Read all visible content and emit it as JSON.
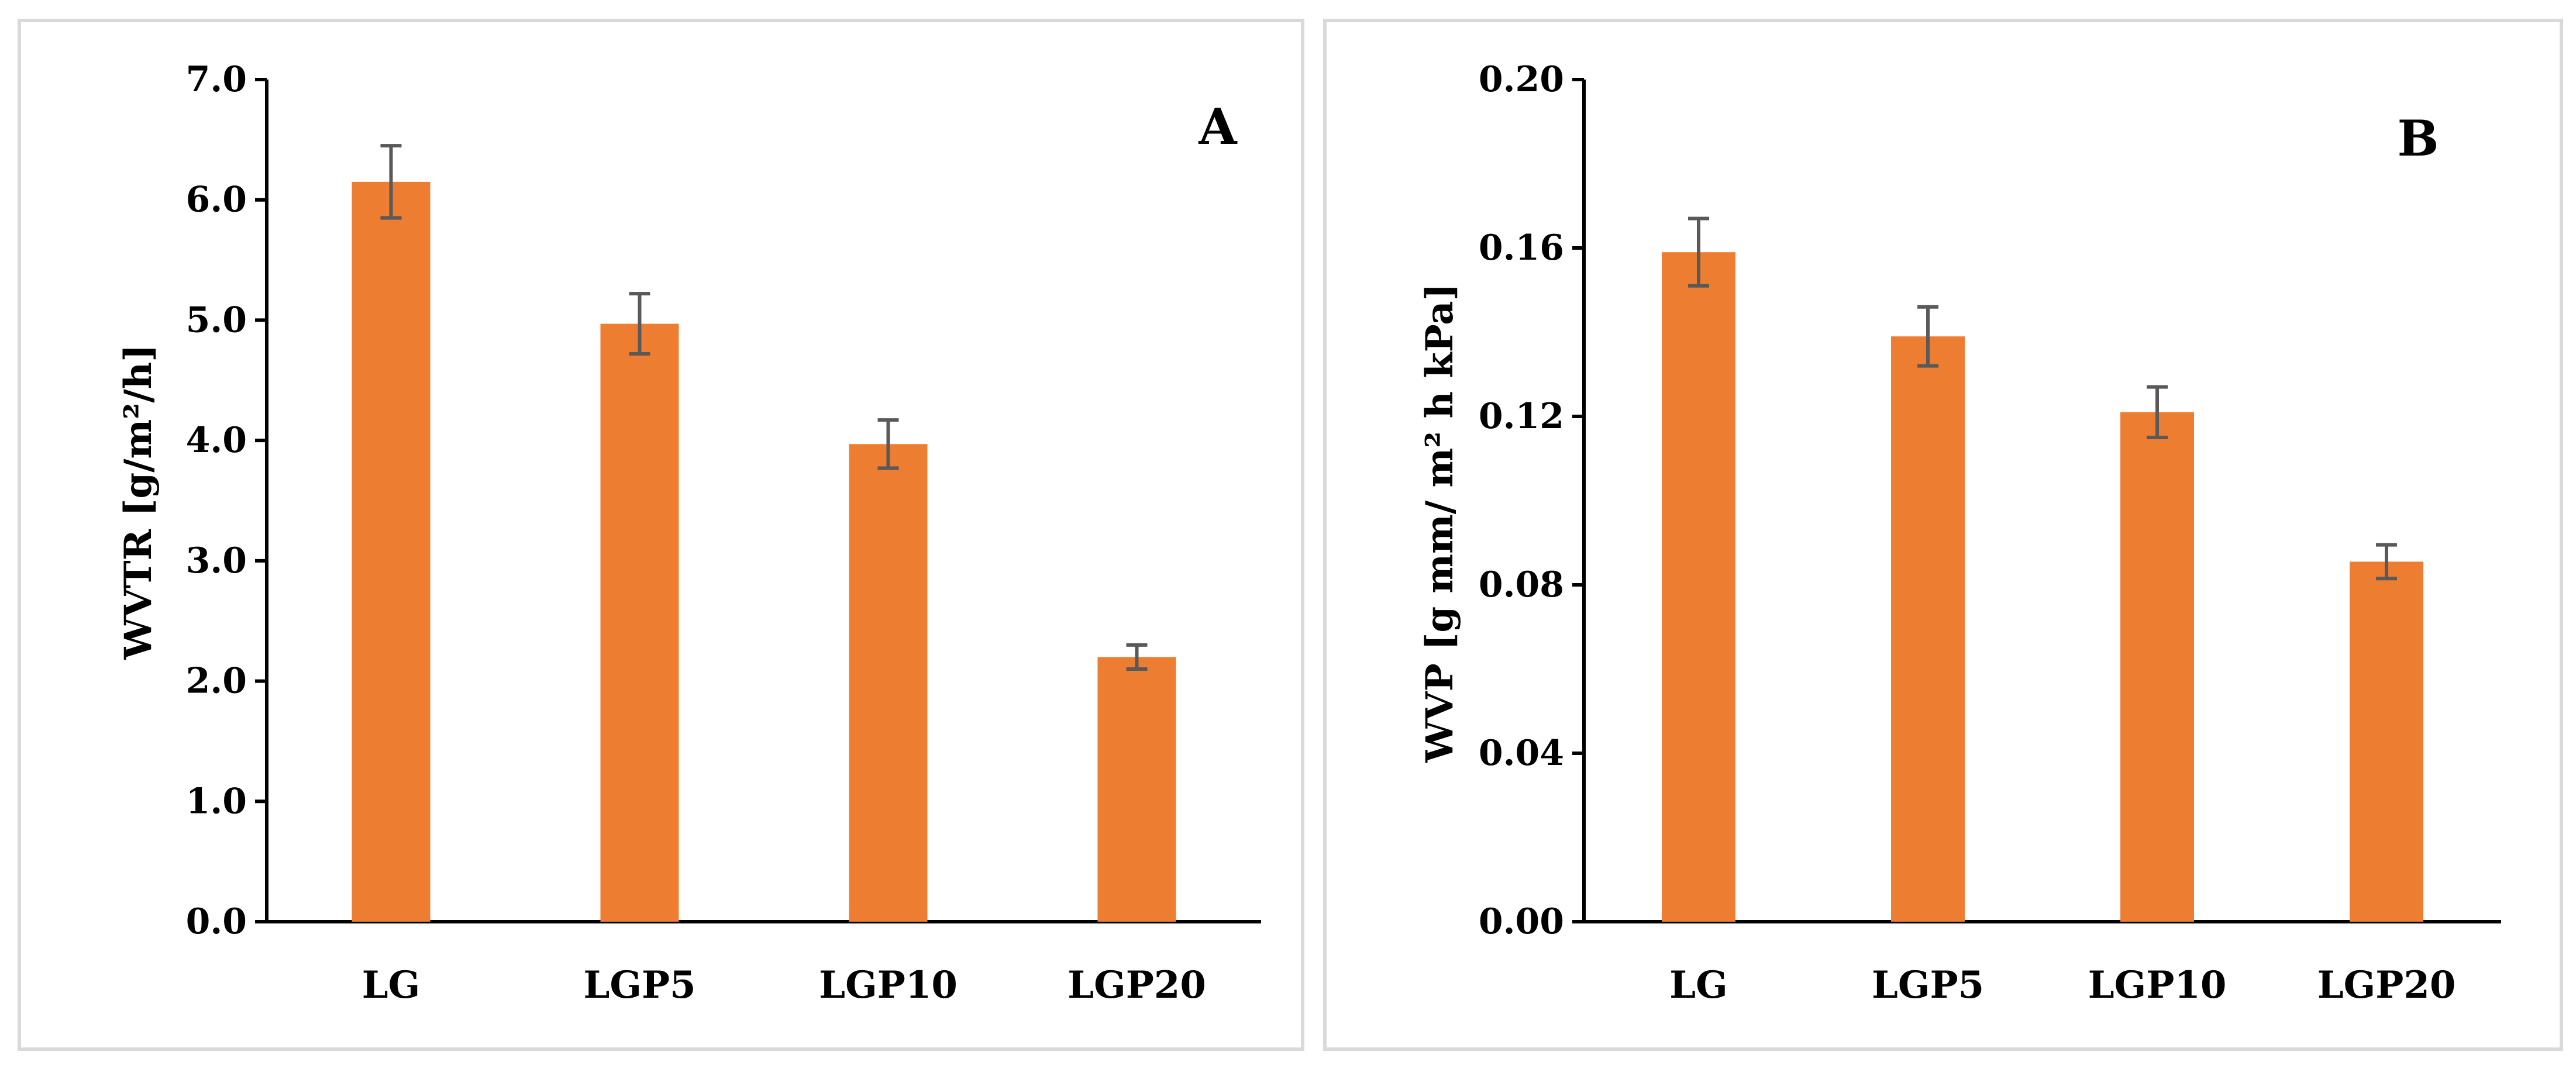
{
  "bar_color": "#ED7D31",
  "error_color": "#595959",
  "chart_data": [
    {
      "type": "bar",
      "panel_label": "A",
      "categories": [
        "LG",
        "LGP5",
        "LGP10",
        "LGP20"
      ],
      "values": [
        6.15,
        4.97,
        3.97,
        2.2
      ],
      "errors": [
        0.3,
        0.25,
        0.2,
        0.1
      ],
      "ylabel": "WVTR [g/m²/h]",
      "ylim": [
        0,
        7
      ],
      "yticks": [
        0,
        1,
        2,
        3,
        4,
        5,
        6,
        7
      ],
      "ytick_labels": [
        "0.0",
        "1.0",
        "2.0",
        "3.0",
        "4.0",
        "5.0",
        "6.0",
        "7.0"
      ]
    },
    {
      "type": "bar",
      "panel_label": "B",
      "categories": [
        "LG",
        "LGP5",
        "LGP10",
        "LGP20"
      ],
      "values": [
        0.159,
        0.139,
        0.121,
        0.0855
      ],
      "errors": [
        0.008,
        0.007,
        0.006,
        0.004
      ],
      "ylabel": "WVP [g mm/ m² h kPa]",
      "ylim": [
        0,
        0.2
      ],
      "yticks": [
        0,
        0.04,
        0.08,
        0.12,
        0.16,
        0.2
      ],
      "ytick_labels": [
        "0.00",
        "0.04",
        "0.08",
        "0.12",
        "0.16",
        "0.20"
      ]
    }
  ]
}
